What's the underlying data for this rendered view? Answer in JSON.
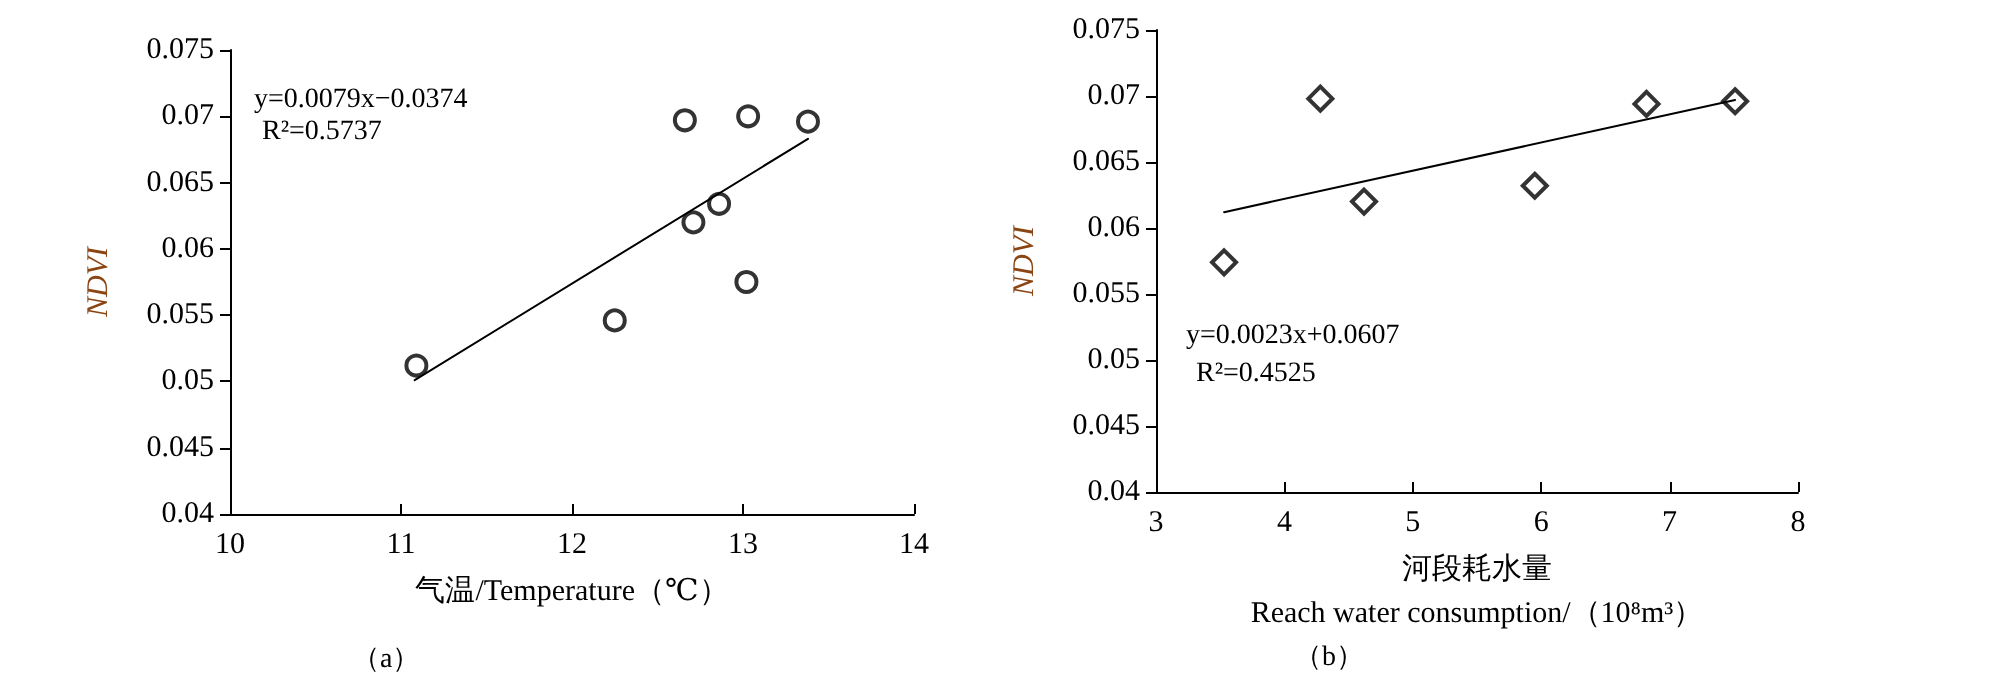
{
  "chart_data": [
    {
      "type": "scatter",
      "xlabel": "气温/Temperature（℃）",
      "ylabel": "NDVI",
      "xlim": [
        10,
        14
      ],
      "xticks": [
        10,
        11,
        12,
        13,
        14
      ],
      "ylim": [
        0.04,
        0.075
      ],
      "yticks": [
        0.04,
        0.045,
        0.05,
        0.055,
        0.06,
        0.065,
        0.07,
        0.075
      ],
      "annotations": [
        "y=0.0079x−0.0374",
        "R²=0.5737",
        "（a）"
      ],
      "series": [
        {
          "color": "#000000",
          "marker": "circle",
          "x": [
            11.09,
            12.25,
            12.66,
            12.71,
            12.86,
            13.03,
            13.02,
            13.38
          ],
          "values": [
            0.0512,
            0.0546,
            0.0697,
            0.062,
            0.0634,
            0.07,
            0.0575,
            0.0696
          ]
        },
        {
          "type": "line",
          "color": "#000000",
          "marker": "none",
          "line_style": "solid",
          "x": [
            11.08,
            13.38
          ],
          "values": [
            0.0501,
            0.0683
          ]
        }
      ]
    },
    {
      "type": "scatter",
      "xlabel": "河段耗水量\nReach water consumption/（10⁸m³）",
      "ylabel": "NDVI",
      "xlim": [
        3,
        8
      ],
      "xticks": [
        3,
        4,
        5,
        6,
        7,
        8
      ],
      "ylim": [
        0.04,
        0.075
      ],
      "yticks": [
        0.04,
        0.045,
        0.05,
        0.055,
        0.06,
        0.065,
        0.07,
        0.075
      ],
      "annotations": [
        "y=0.0023x+0.0607",
        "R²=0.4525",
        "（b）"
      ],
      "series": [
        {
          "color": "#000000",
          "marker": "diamond",
          "x": [
            3.53,
            4.28,
            4.62,
            5.95,
            6.82,
            7.51
          ],
          "values": [
            0.0574,
            0.0698,
            0.062,
            0.0632,
            0.0694,
            0.0696
          ]
        },
        {
          "type": "line",
          "color": "#000000",
          "marker": "none",
          "line_style": "solid",
          "x": [
            3.53,
            7.51
          ],
          "values": [
            0.0612,
            0.0697
          ]
        }
      ]
    }
  ]
}
